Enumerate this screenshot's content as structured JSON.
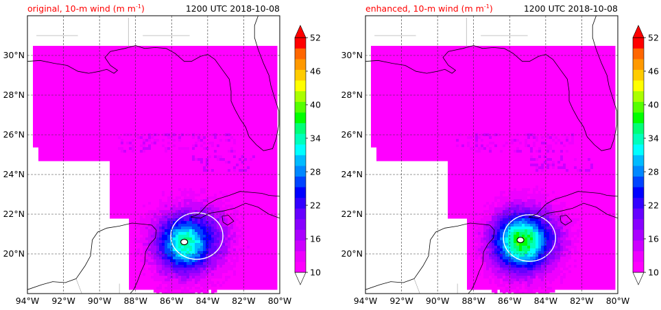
{
  "chart_data": [
    {
      "type": "heatmap",
      "title_left": "original, 10-m wind (m m",
      "title_sup": "-1",
      "title_close": ")",
      "title_right": "1200 UTC 2018-10-08",
      "title_color": "#ff0000",
      "xlim": [
        -94,
        -80
      ],
      "ylim": [
        18,
        32
      ],
      "x_ticks": [
        {
          "value": -94,
          "label": "94°W"
        },
        {
          "value": -92,
          "label": "92°W"
        },
        {
          "value": -90,
          "label": "90°W"
        },
        {
          "value": -88,
          "label": "88°W"
        },
        {
          "value": -86,
          "label": "86°W"
        },
        {
          "value": -84,
          "label": "84°W"
        },
        {
          "value": -82,
          "label": "82°W"
        },
        {
          "value": -80,
          "label": "80°W"
        }
      ],
      "y_ticks": [
        {
          "value": 20,
          "label": "20°N"
        },
        {
          "value": 22,
          "label": "22°N"
        },
        {
          "value": 24,
          "label": "24°N"
        },
        {
          "value": 26,
          "label": "26°N"
        },
        {
          "value": 28,
          "label": "28°N"
        },
        {
          "value": 30,
          "label": "30°N"
        }
      ],
      "grid": true,
      "wind_features": [
        {
          "lon": -84.6,
          "lat": 20.9,
          "peak": 26
        },
        {
          "lon": -85.3,
          "lat": 20.6,
          "peak": 36
        }
      ]
    },
    {
      "type": "heatmap",
      "title_left": "enhanced, 10-m wind (m m",
      "title_sup": "-1",
      "title_close": ")",
      "title_right": "1200 UTC 2018-10-08",
      "title_color": "#ff0000",
      "xlim": [
        -94,
        -80
      ],
      "ylim": [
        18,
        32
      ],
      "x_ticks": [
        {
          "value": -94,
          "label": "94°W"
        },
        {
          "value": -92,
          "label": "92°W"
        },
        {
          "value": -90,
          "label": "90°W"
        },
        {
          "value": -88,
          "label": "88°W"
        },
        {
          "value": -86,
          "label": "86°W"
        },
        {
          "value": -84,
          "label": "84°W"
        },
        {
          "value": -82,
          "label": "82°W"
        },
        {
          "value": -80,
          "label": "80°W"
        }
      ],
      "y_ticks": [
        {
          "value": 20,
          "label": "20°N"
        },
        {
          "value": 22,
          "label": "22°N"
        },
        {
          "value": 24,
          "label": "24°N"
        },
        {
          "value": 26,
          "label": "26°N"
        },
        {
          "value": 28,
          "label": "28°N"
        },
        {
          "value": 30,
          "label": "30°N"
        }
      ],
      "grid": true,
      "wind_features": [
        {
          "lon": -84.9,
          "lat": 20.8,
          "peak": 30
        },
        {
          "lon": -85.4,
          "lat": 20.7,
          "peak": 40
        }
      ]
    }
  ],
  "colorbar": {
    "min": 10,
    "max": 52,
    "step": 2,
    "extend": "both",
    "ticks": [
      "10",
      "16",
      "22",
      "28",
      "34",
      "40",
      "46",
      "52"
    ],
    "colors": [
      "#ff00ff",
      "#ee00ff",
      "#cc00ff",
      "#aa00ff",
      "#8800ff",
      "#6600ff",
      "#3300ff",
      "#0000ff",
      "#0044ff",
      "#0088ff",
      "#00bbff",
      "#00ffff",
      "#00ffbb",
      "#00ff77",
      "#00ff00",
      "#55ff00",
      "#aaff00",
      "#ffff00",
      "#ffcc00",
      "#ff9900",
      "#ff6600",
      "#ff0000"
    ]
  }
}
